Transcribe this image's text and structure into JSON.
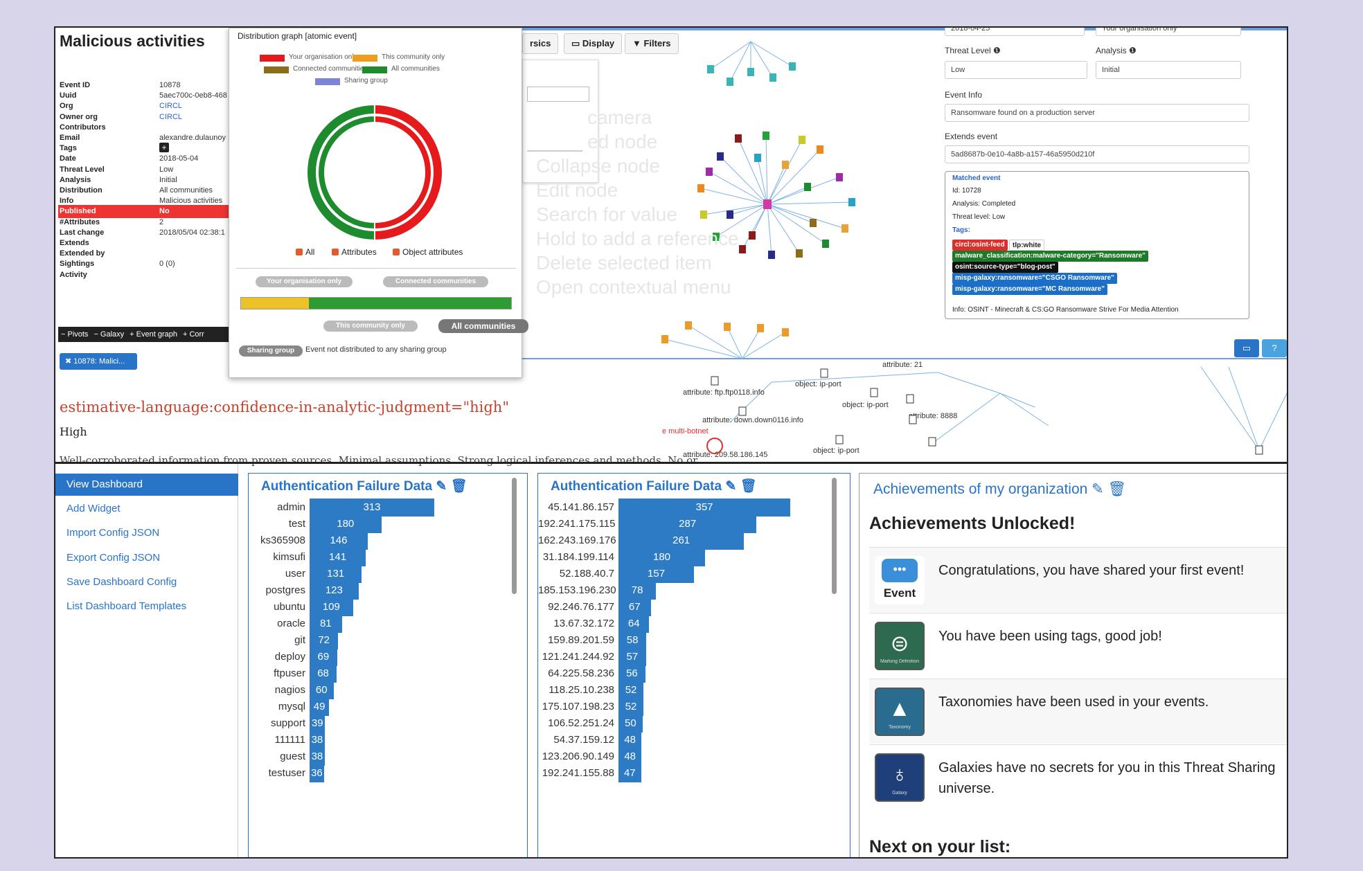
{
  "event": {
    "title": "Malicious activities",
    "fields": [
      {
        "k": "Event ID",
        "v": "10878"
      },
      {
        "k": "Uuid",
        "v": "5aec700c-0eb8-468"
      },
      {
        "k": "Org",
        "v": "CIRCL",
        "link": true
      },
      {
        "k": "Owner org",
        "v": "CIRCL",
        "link": true
      },
      {
        "k": "Contributors",
        "v": ""
      },
      {
        "k": "Email",
        "v": "alexandre.dulaunoy"
      },
      {
        "k": "Tags",
        "v": ""
      },
      {
        "k": "Date",
        "v": "2018-05-04"
      },
      {
        "k": "Threat Level",
        "v": "Low"
      },
      {
        "k": "Analysis",
        "v": "Initial"
      },
      {
        "k": "Distribution",
        "v": "All communities"
      },
      {
        "k": "Info",
        "v": "Malicious activities"
      },
      {
        "k": "Published",
        "v": "No"
      },
      {
        "k": "#Attributes",
        "v": "2"
      },
      {
        "k": "Last change",
        "v": "2018/05/04 02:38:1"
      },
      {
        "k": "Extends",
        "v": ""
      },
      {
        "k": "Extended by",
        "v": ""
      },
      {
        "k": "Sightings",
        "v": "0 (0)"
      },
      {
        "k": "Activity",
        "v": ""
      }
    ],
    "pivot_bar": [
      "Pivots",
      "Galaxy",
      "Event graph",
      "Corr"
    ],
    "pivot_tag": "10878: Malici...",
    "confidence_text": "estimative-language:confidence-in-analytic-judgment=\"high\"",
    "high_text": "High",
    "cut_text": "Well-corroborated information from proven sources. Minimal assumptions. Strong logical inferences and methods. No or"
  },
  "distribution": {
    "title": "Distribution graph",
    "subtitle": "[atomic event]",
    "legend": [
      {
        "label": "Your organisation only",
        "color": "#e41a1c"
      },
      {
        "label": "This community only",
        "color": "#ef9d1f"
      },
      {
        "label": "Connected communities",
        "color": "#8b6d1a"
      },
      {
        "label": "All communities",
        "color": "#1e8c2e"
      },
      {
        "label": "Sharing group",
        "color": "#7d84d8"
      }
    ],
    "donut_fraction_red": 0.5,
    "checkboxes": [
      "All",
      "Attributes",
      "Object attributes"
    ],
    "scale_labels": [
      "Your organisation only",
      "Connected communities",
      "This community only",
      "All communities"
    ],
    "scale_fill_yellow": 0.25,
    "sharing_group_label": "Sharing group",
    "sharing_group_text": "Event not distributed to any sharing group"
  },
  "graph_toolbar": {
    "stats": "rsics",
    "display": "Display",
    "filters": "Filters"
  },
  "ghost_menu": [
    "camera",
    "ed node",
    "Collapse node",
    "Edit node",
    "Search for value",
    "Hold to add a reference",
    "Delete selected item",
    "Open contextual menu"
  ],
  "graph_labels": {
    "a1": "attribute: ftp.ftp0118.info",
    "a2": "attribute: down.down0116.info",
    "a3": "attribute: 209.58.186.145",
    "a4": "attribute: 8888",
    "o1": "object: ip-port",
    "o2": "object: ip-port",
    "o3": "object: ip-port",
    "botnet": "e multi-botnet",
    "top_cut": "attribute: 21"
  },
  "event_form": {
    "date_value": "2018-04-25",
    "org_value": "Your organisation only",
    "threat_label": "Threat Level",
    "threat_value": "Low",
    "analysis_label": "Analysis",
    "analysis_value": "Initial",
    "info_label": "Event Info",
    "info_value": "Ransomware found on a production server",
    "extends_label": "Extends event",
    "extends_value": "5ad8687b-0e10-4a8b-a157-46a5950d210f",
    "matched": {
      "title": "Matched event",
      "id": "Id: 10728",
      "analysis": "Analysis: Completed",
      "threat": "Threat level: Low",
      "tags_label": "Tags:",
      "tags": [
        {
          "text": "circl:osint-feed",
          "color": "#d9302c"
        },
        {
          "text": "tlp:white",
          "color": "#ffffff",
          "fg": "#222"
        },
        {
          "text": "malware_classification:malware-category=\"Ransomware\"",
          "color": "#1e7a28"
        },
        {
          "text": "osint:source-type=\"blog-post\"",
          "color": "#111111"
        },
        {
          "text": "misp-galaxy:ransomware=\"CSGO Ransomware\"",
          "color": "#1c6fc7"
        },
        {
          "text": "misp-galaxy:ransomware=\"MC Ransomware\"",
          "color": "#1c6fc7"
        }
      ],
      "info": "Info: OSINT - Minecraft & CS:GO Ransomware Strive For Media Attention"
    }
  },
  "sidebar": {
    "items": [
      "View Dashboard",
      "Add Widget",
      "Import Config JSON",
      "Export Config JSON",
      "Save Dashboard Config",
      "List Dashboard Templates"
    ]
  },
  "widget1": {
    "title": "Authentication Failure Data",
    "chart_data": {
      "type": "bar",
      "categories": [
        "admin",
        "test",
        "ks365908",
        "kimsufi",
        "user",
        "postgres",
        "ubuntu",
        "oracle",
        "git",
        "deploy",
        "ftpuser",
        "nagios",
        "mysql",
        "support",
        "111111",
        "guest",
        "testuser"
      ],
      "values": [
        313,
        180,
        146,
        141,
        131,
        123,
        109,
        81,
        72,
        69,
        68,
        60,
        49,
        39,
        38,
        38,
        36
      ]
    }
  },
  "widget2": {
    "title": "Authentication Failure Data",
    "chart_data": {
      "type": "bar",
      "categories": [
        "45.141.86.157",
        "192.241.175.115",
        "162.243.169.176",
        "31.184.199.114",
        "52.188.40.7",
        "185.153.196.230",
        "92.246.76.177",
        "13.67.32.172",
        "159.89.201.59",
        "121.241.244.92",
        "64.225.58.236",
        "118.25.10.238",
        "175.107.198.23",
        "106.52.251.24",
        "54.37.159.12",
        "123.206.90.149",
        "192.241.155.88"
      ],
      "values": [
        357,
        287,
        261,
        180,
        157,
        78,
        67,
        64,
        58,
        57,
        56,
        52,
        52,
        50,
        48,
        48,
        47
      ]
    }
  },
  "achievements": {
    "title": "Achievements of my organization",
    "unlocked_title": "Achievements Unlocked!",
    "items": [
      {
        "text": "Congratulations, you have shared your first event!",
        "icon": "event-badge-icon",
        "icon_label": "Event"
      },
      {
        "text": "You have been using tags, good job!",
        "icon": "marking-definition-badge-icon",
        "icon_label": "Marking Definition"
      },
      {
        "text": "Taxonomies have been used in your events.",
        "icon": "taxonomy-badge-icon",
        "icon_label": "Taxonomy"
      },
      {
        "text": "Galaxies have no secrets for you in this Threat Sharing universe.",
        "icon": "galaxy-badge-icon",
        "icon_label": "Galaxy"
      }
    ],
    "next_title": "Next on your list:"
  },
  "colors": {
    "accent": "#2a74c8",
    "bar": "#2d7bc4",
    "published_bg": "#e33333"
  }
}
